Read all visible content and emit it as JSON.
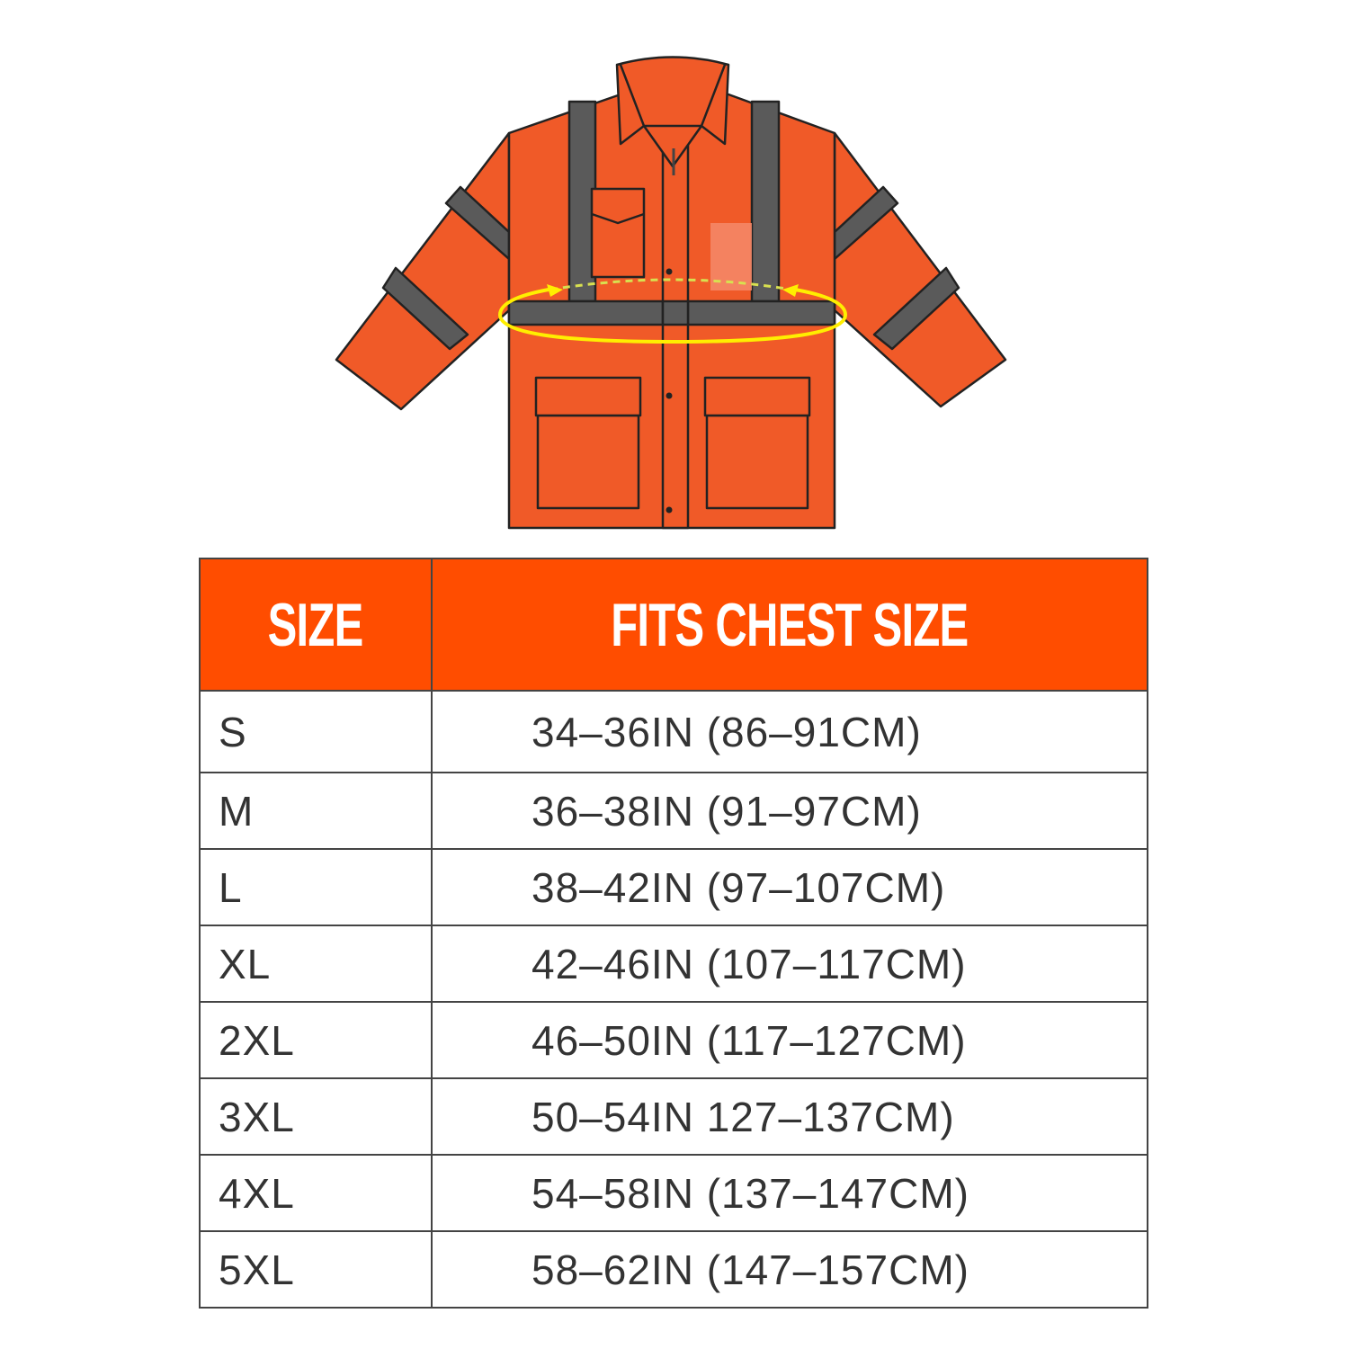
{
  "illustration": {
    "subject": "jacket-chest-measurement",
    "colors": {
      "body": "#F05A28",
      "reflective": "#5A5A5A",
      "outline": "#222222",
      "measure": "#FFEE00"
    }
  },
  "table": {
    "header_color": "#FF4D00",
    "headers": [
      "SIZE",
      "FITS CHEST SIZE"
    ],
    "rows": [
      {
        "size": "S",
        "fit": "34–36IN (86–91CM)"
      },
      {
        "size": "M",
        "fit": "36–38IN (91–97CM)"
      },
      {
        "size": "L",
        "fit": "38–42IN (97–107CM)"
      },
      {
        "size": "XL",
        "fit": "42–46IN (107–117CM)"
      },
      {
        "size": "2XL",
        "fit": "46–50IN (117–127CM)"
      },
      {
        "size": "3XL",
        "fit": "50–54IN 127–137CM)"
      },
      {
        "size": "4XL",
        "fit": "54–58IN (137–147CM)"
      },
      {
        "size": "5XL",
        "fit": "58–62IN (147–157CM)"
      }
    ]
  }
}
